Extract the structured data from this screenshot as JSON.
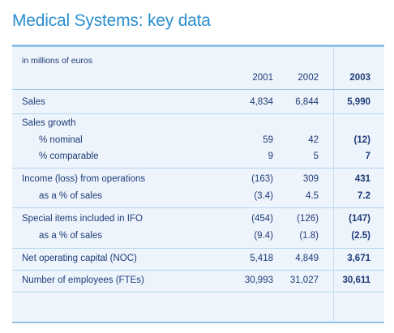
{
  "title": "Medical Systems: key data",
  "units": "in millions of euros",
  "years": [
    "2001",
    "2002",
    "2003"
  ],
  "rows": [
    {
      "label": "Sales",
      "indent": false,
      "values": [
        "4,834",
        "6,844",
        "5,990"
      ]
    },
    {
      "label": "Sales growth",
      "indent": false,
      "values": [
        "",
        "",
        ""
      ]
    },
    {
      "label": "% nominal",
      "indent": true,
      "values": [
        "59",
        "42",
        "(12)"
      ]
    },
    {
      "label": "% comparable",
      "indent": true,
      "values": [
        "9",
        "5",
        "7"
      ]
    },
    {
      "label": "Income (loss) from operations",
      "indent": false,
      "values": [
        "(163)",
        "309",
        "431"
      ]
    },
    {
      "label": "as a % of sales",
      "indent": true,
      "values": [
        "(3.4)",
        "4.5",
        "7.2"
      ]
    },
    {
      "label": "Special items included in IFO",
      "indent": false,
      "values": [
        "(454)",
        "(126)",
        "(147)"
      ]
    },
    {
      "label": "as a % of sales",
      "indent": true,
      "values": [
        "(9.4)",
        "(1.8)",
        "(2.5)"
      ]
    },
    {
      "label": "Net operating capital (NOC)",
      "indent": false,
      "values": [
        "5,418",
        "4,849",
        "3,671"
      ]
    },
    {
      "label": "Number of employees (FTEs)",
      "indent": false,
      "values": [
        "30,993",
        "31,027",
        "30,611"
      ]
    }
  ],
  "colors": {
    "title": "#2a8ecf",
    "text": "#1f3b78",
    "panel": "#edf4fb",
    "rule": "#8fc2e8"
  }
}
